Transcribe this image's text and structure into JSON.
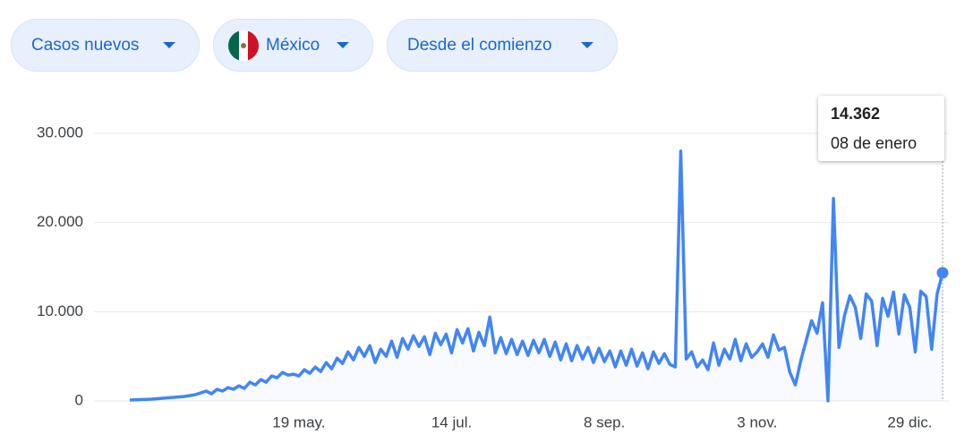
{
  "controls": [
    "Casos nuevos",
    "México",
    "Desde el comienzo"
  ],
  "tooltip": {
    "label": "14.362",
    "date": "08 de enero"
  },
  "chart_data": {
    "type": "line",
    "categories": [
      null,
      null,
      null,
      null,
      null,
      null,
      null,
      null,
      null,
      null,
      null,
      null,
      null,
      null,
      null,
      null,
      null,
      null,
      null,
      null,
      null,
      null,
      null,
      null,
      null,
      null,
      null,
      null,
      null,
      null,
      null,
      "19 may.",
      null,
      null,
      null,
      null,
      null,
      null,
      null,
      null,
      null,
      null,
      null,
      null,
      null,
      null,
      null,
      null,
      null,
      null,
      null,
      null,
      null,
      null,
      null,
      null,
      null,
      null,
      null,
      "14 jul.",
      null,
      null,
      null,
      null,
      null,
      null,
      null,
      null,
      null,
      null,
      null,
      null,
      null,
      null,
      null,
      null,
      null,
      null,
      null,
      null,
      null,
      null,
      null,
      null,
      null,
      null,
      null,
      "8 sep.",
      null,
      null,
      null,
      null,
      null,
      null,
      null,
      null,
      null,
      null,
      null,
      null,
      null,
      null,
      null,
      null,
      null,
      null,
      null,
      null,
      null,
      null,
      null,
      null,
      null,
      null,
      null,
      "3 nov.",
      null,
      null,
      null,
      null,
      null,
      null,
      null,
      null,
      null,
      null,
      null,
      null,
      null,
      null,
      null,
      null,
      null,
      null,
      null,
      null,
      null,
      null,
      null,
      null,
      null,
      null,
      null,
      "29 dic.",
      null,
      null,
      null,
      null,
      null,
      null
    ],
    "series": [
      {
        "color": "#4285f4",
        "values": [
          100,
          120,
          150,
          180,
          200,
          250,
          300,
          350,
          400,
          450,
          500,
          600,
          700,
          900,
          1100,
          800,
          1300,
          1100,
          1500,
          1300,
          1700,
          1400,
          2100,
          1800,
          2400,
          2100,
          2800,
          2600,
          3200,
          2900,
          3000,
          2800,
          3500,
          3100,
          3800,
          3300,
          4300,
          3600,
          4800,
          4200,
          5500,
          4600,
          6000,
          5000,
          6200,
          4300,
          5800,
          5000,
          6700,
          4900,
          7000,
          5800,
          7300,
          6100,
          7200,
          5200,
          7600,
          6300,
          7500,
          5400,
          8000,
          6500,
          8100,
          5600,
          7700,
          6200,
          9400,
          5400,
          7100,
          5300,
          6900,
          5200,
          6700,
          5100,
          6800,
          5400,
          6900,
          5000,
          6600,
          4600,
          6400,
          4500,
          6200,
          4700,
          6000,
          4300,
          5900,
          4400,
          5600,
          3800,
          5600,
          4000,
          5800,
          3900,
          5400,
          3600,
          5500,
          4200,
          5300,
          4100,
          3800,
          28000,
          4700,
          5500,
          3800,
          4600,
          3500,
          6500,
          4000,
          5800,
          4700,
          6900,
          4500,
          6400,
          4900,
          5500,
          6400,
          4900,
          7400,
          5700,
          6000,
          3200,
          1800,
          4500,
          6800,
          9000,
          7600,
          11000,
          0,
          22700,
          6000,
          9500,
          11800,
          10500,
          7000,
          12000,
          11200,
          6200,
          11500,
          9500,
          12200,
          7500,
          11900,
          10500,
          5500,
          12300,
          11700,
          5800,
          12000,
          14362
        ]
      }
    ],
    "ylim": [
      0,
      30000
    ],
    "yticks": [
      0,
      {
        "value": 10000,
        "label": "10.000"
      },
      {
        "value": 20000,
        "label": "20.000"
      },
      {
        "value": 30000,
        "label": "30.000"
      }
    ],
    "grid": true
  }
}
